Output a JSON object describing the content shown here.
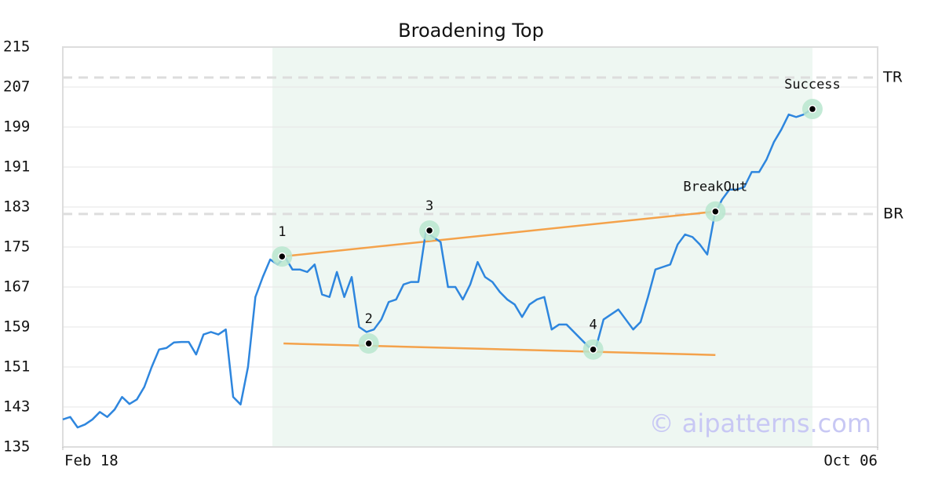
{
  "chart_data": {
    "type": "line",
    "title": "Broadening Top",
    "watermark": "© aipatterns.com",
    "x": [
      0,
      1,
      2,
      3,
      4,
      5,
      6,
      7,
      8,
      9,
      10,
      11,
      12,
      13,
      14,
      15,
      16,
      17,
      18,
      19,
      20,
      21,
      22,
      23,
      24,
      25,
      26,
      27,
      28,
      29,
      30,
      31,
      32,
      33,
      34,
      35,
      36,
      37,
      38,
      39,
      40,
      41,
      42,
      43,
      44,
      45,
      46,
      47,
      48,
      49,
      50,
      51,
      52,
      53,
      54,
      55,
      56,
      57,
      58,
      59,
      60,
      61,
      62,
      63,
      64,
      65,
      66,
      67,
      68,
      69,
      70,
      71,
      72,
      73,
      74,
      75,
      76,
      77,
      78,
      79,
      80,
      81,
      82,
      83,
      84,
      85,
      86,
      87,
      88,
      89,
      90,
      91,
      92,
      93,
      94,
      95,
      96,
      97,
      98,
      99,
      100,
      101
    ],
    "series": [
      {
        "color": "#2e86de",
        "values": [
          140.5,
          141,
          138.9,
          139.5,
          140.5,
          142,
          141,
          142.5,
          145,
          143.6,
          144.5,
          147,
          151,
          154.5,
          154.8,
          155.9,
          156,
          156,
          153.5,
          157.5,
          158,
          157.5,
          158.5,
          145,
          143.5,
          151,
          165,
          169,
          172.5,
          171.5,
          173,
          170.5,
          170.5,
          170,
          171.5,
          165.5,
          165,
          170,
          165,
          169,
          159,
          158,
          158.5,
          160.5,
          164,
          164.5,
          167.5,
          168,
          168,
          178,
          177,
          176,
          167,
          167,
          164.5,
          167.5,
          172,
          169,
          168,
          166,
          164.5,
          163.5,
          161,
          163.5,
          164.5,
          165,
          158.5,
          159.5,
          159.5,
          158,
          156.5,
          155,
          155,
          160.5,
          161.5,
          162.5,
          160.5,
          158.5,
          160,
          165,
          170.5,
          171,
          171.5,
          175.5,
          177.5,
          177,
          175.5,
          173.5,
          181.5,
          184.5,
          186.5,
          186.5,
          187,
          190,
          190,
          192.5,
          196,
          198.5,
          201.5,
          201,
          201.5,
          202.5
        ]
      }
    ],
    "points": [
      {
        "label": "1",
        "x": 29.6,
        "y": 173.1
      },
      {
        "label": "2",
        "x": 41.3,
        "y": 155.7
      },
      {
        "label": "3",
        "x": 49.5,
        "y": 178.3
      },
      {
        "label": "4",
        "x": 71.6,
        "y": 154.5
      },
      {
        "label": "BreakOut",
        "x": 88.1,
        "y": 182.1
      },
      {
        "label": "Success",
        "x": 101.2,
        "y": 202.6
      }
    ],
    "trend_lines": [
      {
        "x1": 29.6,
        "y1": 173.1,
        "x2": 88.1,
        "y2": 182.1,
        "color": "#f4a24b"
      },
      {
        "x1": 29.8,
        "y1": 155.7,
        "x2": 88.1,
        "y2": 153.4,
        "color": "#f4a24b"
      }
    ],
    "levels": [
      {
        "label": "TR",
        "value": 208.9
      },
      {
        "label": "BR",
        "value": 181.6
      }
    ],
    "shade": [
      28.3,
      101.2
    ],
    "xlim": [
      0,
      110
    ],
    "xticks": [
      {
        "value": 0,
        "label": "Feb 18"
      },
      {
        "value": 110,
        "label": "Oct 06"
      }
    ],
    "ylim": [
      135,
      215
    ],
    "yticks": [
      135,
      143,
      151,
      159,
      167,
      175,
      183,
      191,
      199,
      207,
      215
    ],
    "grid": true
  }
}
